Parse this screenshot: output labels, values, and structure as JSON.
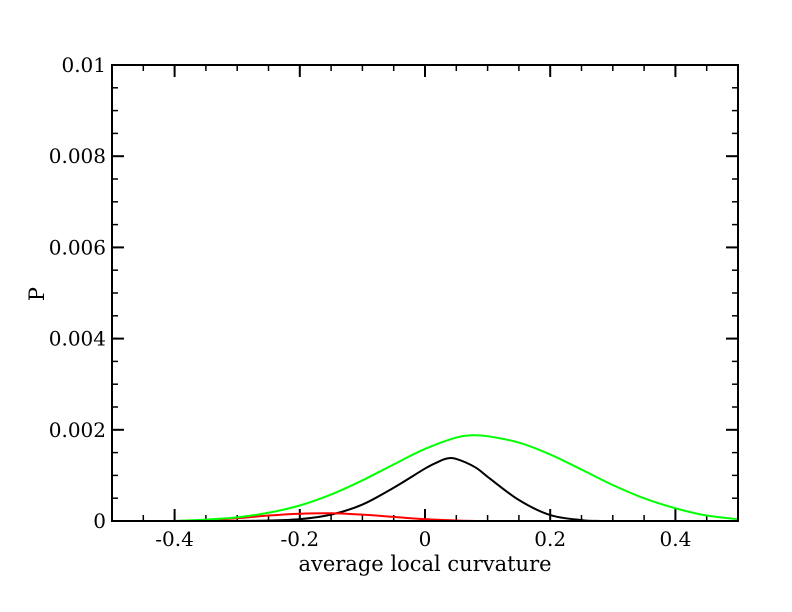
{
  "chart_data": {
    "type": "line",
    "title": "",
    "xlabel": "average local curvature",
    "ylabel": "P",
    "xlim": [
      -0.5,
      0.5
    ],
    "ylim": [
      0,
      0.01
    ],
    "grid": false,
    "x_ticks": [
      -0.4,
      -0.2,
      0,
      0.2,
      0.4
    ],
    "x_tick_labels": [
      "-0.4",
      "-0.2",
      "0",
      "0.2",
      "0.4"
    ],
    "x_minor_step": 0.05,
    "y_ticks": [
      0,
      0.002,
      0.004,
      0.006,
      0.008,
      0.01
    ],
    "y_tick_labels": [
      "0",
      "0.002",
      "0.004",
      "0.006",
      "0.008",
      "0.01"
    ],
    "y_minor_step": 0.0005,
    "series": [
      {
        "color": "#000000",
        "x": [
          -0.3,
          -0.25,
          -0.2,
          -0.15,
          -0.1,
          -0.05,
          0.0,
          0.02,
          0.035,
          0.05,
          0.08,
          0.1,
          0.15,
          0.2,
          0.25,
          0.28
        ],
        "y": [
          0.0,
          1e-05,
          4e-05,
          0.00014,
          0.00036,
          0.00073,
          0.00115,
          0.00129,
          0.00137,
          0.00136,
          0.00118,
          0.00097,
          0.00046,
          0.00013,
          2e-05,
          0.0
        ]
      },
      {
        "color": "#ff0000",
        "x": [
          -0.4,
          -0.35,
          -0.3,
          -0.25,
          -0.2,
          -0.15,
          -0.1,
          -0.05,
          0.0,
          0.05,
          0.08
        ],
        "y": [
          0.0,
          2e-05,
          6e-05,
          0.00012,
          0.00016,
          0.00017,
          0.00014,
          9e-05,
          4e-05,
          1e-05,
          0.0
        ]
      },
      {
        "color": "#00ff00",
        "x": [
          -0.4,
          -0.35,
          -0.3,
          -0.25,
          -0.2,
          -0.15,
          -0.1,
          -0.05,
          0.0,
          0.05,
          0.075,
          0.1,
          0.15,
          0.2,
          0.25,
          0.3,
          0.35,
          0.4,
          0.45,
          0.5
        ],
        "y": [
          0.0,
          3e-05,
          8e-05,
          0.00018,
          0.00034,
          0.00058,
          0.00089,
          0.00124,
          0.00158,
          0.00183,
          0.00188,
          0.00186,
          0.00172,
          0.00146,
          0.00113,
          0.00079,
          0.0005,
          0.00028,
          0.00012,
          4e-05
        ]
      }
    ]
  }
}
